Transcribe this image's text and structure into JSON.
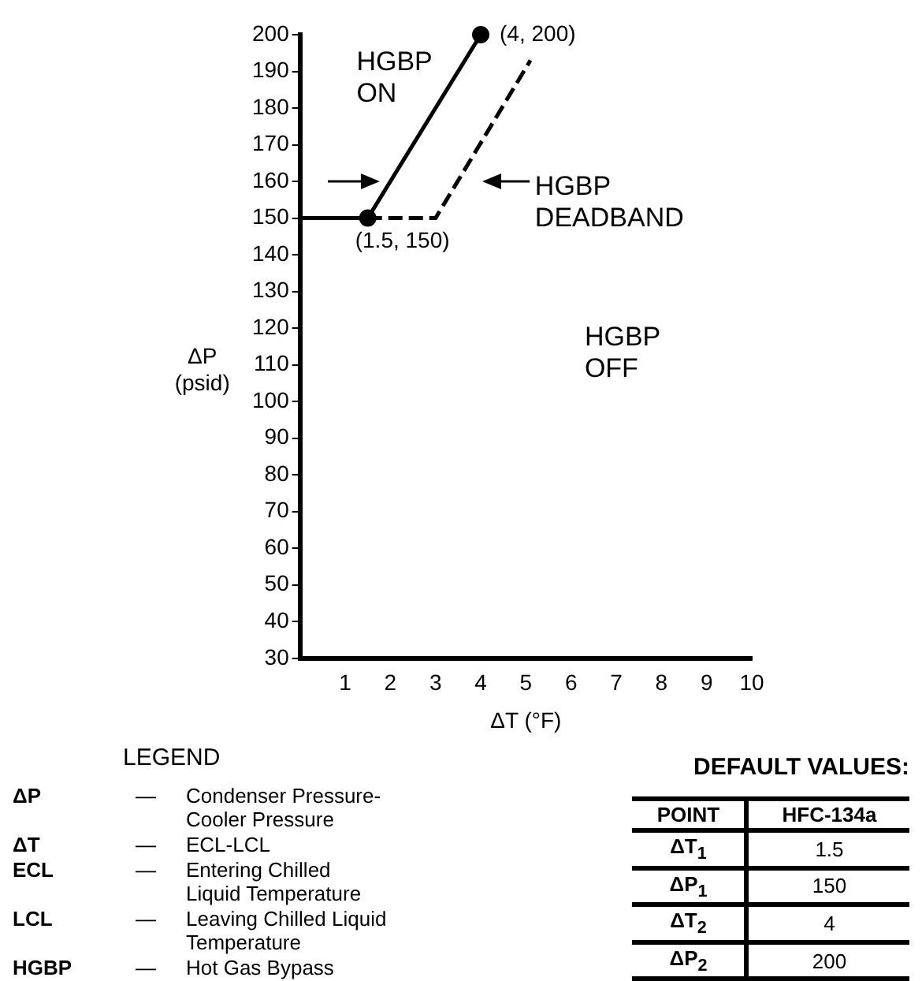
{
  "chart_data": {
    "type": "line",
    "xlabel": "ΔT (°F)",
    "ylabel": "ΔP (psid)",
    "xlim": [
      0,
      10
    ],
    "xticks": [
      1,
      2,
      3,
      4,
      5,
      6,
      7,
      8,
      9,
      10
    ],
    "ylim": [
      30,
      200
    ],
    "yticks": [
      30,
      40,
      50,
      60,
      70,
      80,
      90,
      100,
      110,
      120,
      130,
      140,
      150,
      160,
      170,
      180,
      190,
      200
    ],
    "series": [
      {
        "color": "#000000",
        "x": [
          0,
          1.5,
          4
        ],
        "values": [
          150,
          150,
          200
        ],
        "line_style": "solid",
        "marker": "none"
      },
      {
        "color": "#000000",
        "x": [
          1.5,
          3,
          5.1
        ],
        "values": [
          150,
          150,
          193
        ],
        "line_style": "dashed",
        "marker": "none"
      },
      {
        "type": "scatter",
        "color": "#000000",
        "x": [
          1.5,
          4
        ],
        "values": [
          150,
          200
        ],
        "marker": "circle"
      }
    ],
    "annotations": [
      {
        "text": "(4, 200)",
        "x": 4,
        "y": 200
      },
      {
        "text": "(1.5, 150)",
        "x": 1.5,
        "y": 150
      },
      "HGBP ON",
      "HGBP DEADBAND",
      "HGBP OFF",
      "LEGEND",
      "ΔP — Condenser Pressure-Cooler Pressure",
      "ΔT — ECL-LCL",
      "ECL — Entering Chilled Liquid Temperature",
      "LCL — Leaving Chilled Liquid Temperature",
      "HGBP — Hot Gas Bypass",
      "DEFAULT VALUES:",
      "POINT",
      "HFC-134a",
      "ΔT$_{1}$",
      "1.5",
      "ΔP$_{1}$",
      "150",
      "ΔT$_{2}$",
      "4",
      "ΔP$_{2}$",
      "200"
    ]
  }
}
